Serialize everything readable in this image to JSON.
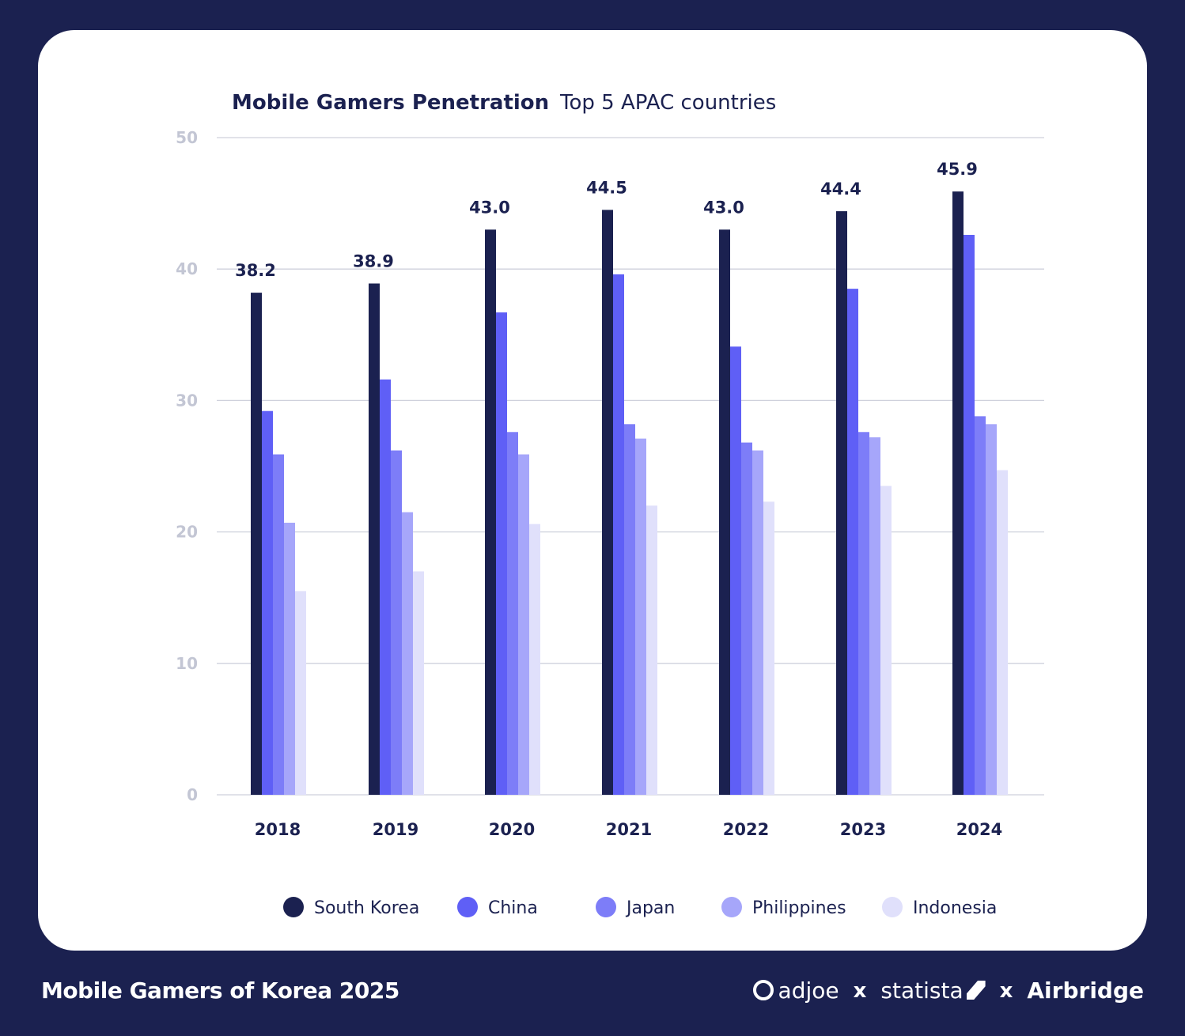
{
  "header": {
    "title_bold": "Mobile Gamers Penetration",
    "title_light": "Top 5 APAC countries"
  },
  "chart_data": {
    "type": "bar",
    "title": "Mobile Gamers Penetration",
    "subtitle": "Top 5 APAC countries",
    "categories": [
      "2018",
      "2019",
      "2020",
      "2021",
      "2022",
      "2023",
      "2024"
    ],
    "yticks": [
      "0",
      "10",
      "20",
      "30",
      "40",
      "50"
    ],
    "ylim": [
      0,
      50
    ],
    "grid": true,
    "legend_position": "bottom",
    "series": [
      {
        "name": "South Korea",
        "color": "#1b2150",
        "values": [
          38.2,
          38.9,
          43.0,
          44.5,
          43.0,
          44.4,
          45.9
        ],
        "labels": [
          "38.2",
          "38.9",
          "43.0",
          "44.5",
          "43.0",
          "44.4",
          "45.9"
        ]
      },
      {
        "name": "China",
        "color": "#5f5ff6",
        "values": [
          29.2,
          31.6,
          36.7,
          39.6,
          34.1,
          38.5,
          42.6
        ]
      },
      {
        "name": "Japan",
        "color": "#7d7df8",
        "values": [
          25.9,
          26.2,
          27.6,
          28.2,
          26.8,
          27.6,
          28.8
        ]
      },
      {
        "name": "Philippines",
        "color": "#a6a6fa",
        "values": [
          20.7,
          21.5,
          25.9,
          27.1,
          26.2,
          27.2,
          28.2
        ]
      },
      {
        "name": "Indonesia",
        "color": "#e0e0fb",
        "values": [
          15.5,
          17.0,
          20.6,
          22.0,
          22.3,
          23.5,
          24.7
        ]
      }
    ]
  },
  "footer": {
    "title": "Mobile Gamers of Korea 2025",
    "brand_1": "adjoe",
    "sep_1": "x",
    "brand_2": "statista",
    "sep_2": "x",
    "brand_3": "Airbridge"
  }
}
